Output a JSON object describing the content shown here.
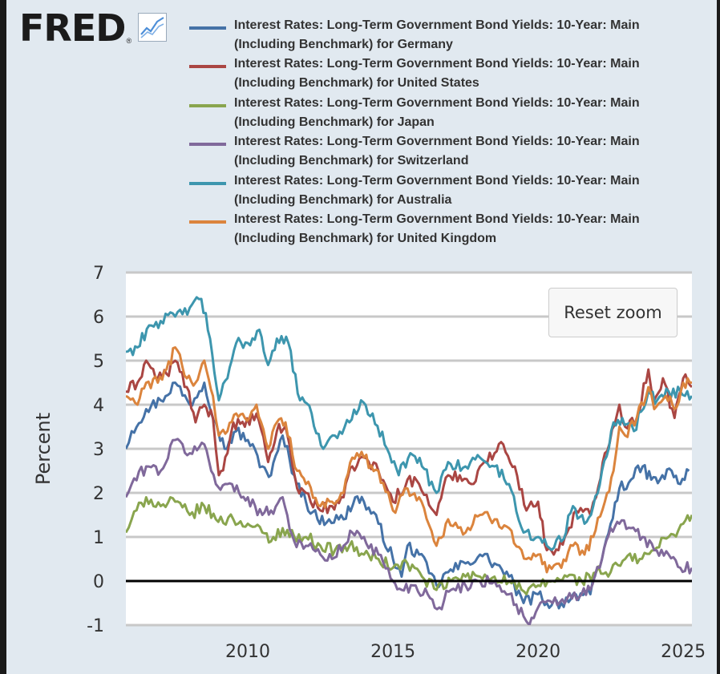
{
  "logo": {
    "text": "FRED",
    "reg": "®",
    "icon": "fred-chart-line-icon"
  },
  "reset_zoom_label": "Reset zoom",
  "colors": {
    "germany": "#4572a7",
    "united_states": "#aa4643",
    "japan": "#89a54e",
    "switzerland": "#80699b",
    "australia": "#3d96ae",
    "united_kingdom": "#db843d",
    "zero_line": "#000000",
    "grid": "#c8c8c8",
    "plot_bg": "#ffffff"
  },
  "chart_data": {
    "type": "line",
    "ylabel": "Percent",
    "ylim": [
      -1,
      7
    ],
    "xlim": [
      2005.8,
      2025.3
    ],
    "yticks": [
      -1,
      0,
      1,
      2,
      3,
      4,
      5,
      6,
      7
    ],
    "xticks": [
      2010,
      2015,
      2020,
      2025
    ],
    "grid": true,
    "legend_position": "top",
    "series": [
      {
        "name": "Interest Rates: Long-Term Government Bond Yields: 10-Year: Main (Including Benchmark) for Germany",
        "color": "#4572a7",
        "points": [
          [
            2005.8,
            3.0
          ],
          [
            2006.0,
            3.4
          ],
          [
            2006.5,
            3.9
          ],
          [
            2007.0,
            4.1
          ],
          [
            2007.5,
            4.5
          ],
          [
            2008.0,
            4.0
          ],
          [
            2008.5,
            4.5
          ],
          [
            2008.9,
            3.6
          ],
          [
            2009.2,
            3.0
          ],
          [
            2009.6,
            3.4
          ],
          [
            2010.0,
            3.2
          ],
          [
            2010.5,
            2.6
          ],
          [
            2010.8,
            2.4
          ],
          [
            2011.2,
            3.3
          ],
          [
            2011.6,
            2.4
          ],
          [
            2012.0,
            1.8
          ],
          [
            2012.4,
            1.4
          ],
          [
            2012.8,
            1.4
          ],
          [
            2013.3,
            1.4
          ],
          [
            2013.7,
            1.9
          ],
          [
            2014.0,
            1.8
          ],
          [
            2014.5,
            1.3
          ],
          [
            2015.0,
            0.5
          ],
          [
            2015.3,
            0.1
          ],
          [
            2015.5,
            0.8
          ],
          [
            2015.9,
            0.6
          ],
          [
            2016.5,
            -0.1
          ],
          [
            2016.9,
            0.2
          ],
          [
            2017.5,
            0.4
          ],
          [
            2018.0,
            0.6
          ],
          [
            2018.5,
            0.4
          ],
          [
            2019.0,
            0.1
          ],
          [
            2019.5,
            -0.5
          ],
          [
            2020.0,
            -0.3
          ],
          [
            2020.3,
            -0.5
          ],
          [
            2020.8,
            -0.5
          ],
          [
            2021.3,
            -0.3
          ],
          [
            2021.8,
            -0.3
          ],
          [
            2022.2,
            0.5
          ],
          [
            2022.5,
            1.3
          ],
          [
            2022.8,
            2.1
          ],
          [
            2023.2,
            2.3
          ],
          [
            2023.6,
            2.6
          ],
          [
            2023.9,
            2.3
          ],
          [
            2024.2,
            2.3
          ],
          [
            2024.6,
            2.5
          ],
          [
            2024.9,
            2.2
          ],
          [
            2025.2,
            2.5
          ]
        ]
      },
      {
        "name": "Interest Rates: Long-Term Government Bond Yields: 10-Year: Main (Including Benchmark) for United States",
        "color": "#aa4643",
        "points": [
          [
            2005.8,
            4.3
          ],
          [
            2006.2,
            4.5
          ],
          [
            2006.5,
            5.0
          ],
          [
            2006.9,
            4.6
          ],
          [
            2007.2,
            4.7
          ],
          [
            2007.5,
            5.0
          ],
          [
            2007.9,
            4.4
          ],
          [
            2008.2,
            3.6
          ],
          [
            2008.5,
            4.0
          ],
          [
            2008.8,
            3.7
          ],
          [
            2009.0,
            2.4
          ],
          [
            2009.3,
            2.9
          ],
          [
            2009.5,
            3.6
          ],
          [
            2009.9,
            3.5
          ],
          [
            2010.3,
            3.8
          ],
          [
            2010.7,
            2.7
          ],
          [
            2011.0,
            3.4
          ],
          [
            2011.3,
            3.5
          ],
          [
            2011.7,
            2.1
          ],
          [
            2012.0,
            2.0
          ],
          [
            2012.5,
            1.6
          ],
          [
            2012.9,
            1.7
          ],
          [
            2013.3,
            1.9
          ],
          [
            2013.6,
            2.6
          ],
          [
            2014.0,
            2.8
          ],
          [
            2014.5,
            2.5
          ],
          [
            2015.0,
            1.8
          ],
          [
            2015.5,
            2.3
          ],
          [
            2015.9,
            2.2
          ],
          [
            2016.5,
            1.5
          ],
          [
            2016.9,
            2.4
          ],
          [
            2017.3,
            2.4
          ],
          [
            2017.7,
            2.2
          ],
          [
            2018.0,
            2.6
          ],
          [
            2018.5,
            2.9
          ],
          [
            2018.8,
            3.1
          ],
          [
            2019.2,
            2.6
          ],
          [
            2019.6,
            1.6
          ],
          [
            2020.0,
            1.8
          ],
          [
            2020.3,
            0.7
          ],
          [
            2020.7,
            0.7
          ],
          [
            2021.0,
            1.1
          ],
          [
            2021.3,
            1.6
          ],
          [
            2021.8,
            1.5
          ],
          [
            2022.0,
            1.9
          ],
          [
            2022.3,
            2.9
          ],
          [
            2022.8,
            4.0
          ],
          [
            2023.0,
            3.5
          ],
          [
            2023.4,
            3.7
          ],
          [
            2023.8,
            4.8
          ],
          [
            2024.0,
            4.1
          ],
          [
            2024.3,
            4.6
          ],
          [
            2024.7,
            3.7
          ],
          [
            2025.0,
            4.6
          ],
          [
            2025.3,
            4.4
          ]
        ]
      },
      {
        "name": "Interest Rates: Long-Term Government Bond Yields: 10-Year: Main (Including Benchmark) for Japan",
        "color": "#89a54e",
        "points": [
          [
            2005.8,
            1.1
          ],
          [
            2006.0,
            1.4
          ],
          [
            2006.5,
            1.9
          ],
          [
            2007.0,
            1.7
          ],
          [
            2007.5,
            1.8
          ],
          [
            2008.0,
            1.5
          ],
          [
            2008.5,
            1.7
          ],
          [
            2008.9,
            1.4
          ],
          [
            2009.5,
            1.4
          ],
          [
            2010.0,
            1.3
          ],
          [
            2010.5,
            1.1
          ],
          [
            2010.8,
            0.9
          ],
          [
            2011.2,
            1.2
          ],
          [
            2011.6,
            1.0
          ],
          [
            2012.0,
            1.0
          ],
          [
            2012.5,
            0.8
          ],
          [
            2013.0,
            0.7
          ],
          [
            2013.5,
            0.8
          ],
          [
            2014.0,
            0.6
          ],
          [
            2014.5,
            0.5
          ],
          [
            2015.0,
            0.3
          ],
          [
            2015.5,
            0.4
          ],
          [
            2016.0,
            0.1
          ],
          [
            2016.5,
            -0.2
          ],
          [
            2017.0,
            0.0
          ],
          [
            2017.5,
            0.1
          ],
          [
            2018.0,
            0.1
          ],
          [
            2018.5,
            0.1
          ],
          [
            2019.0,
            0.0
          ],
          [
            2019.6,
            -0.3
          ],
          [
            2020.0,
            -0.1
          ],
          [
            2020.5,
            0.0
          ],
          [
            2021.0,
            0.1
          ],
          [
            2021.5,
            0.0
          ],
          [
            2022.0,
            0.2
          ],
          [
            2022.5,
            0.2
          ],
          [
            2023.0,
            0.5
          ],
          [
            2023.5,
            0.5
          ],
          [
            2024.0,
            0.7
          ],
          [
            2024.5,
            1.0
          ],
          [
            2025.0,
            1.3
          ],
          [
            2025.3,
            1.5
          ]
        ]
      },
      {
        "name": "Interest Rates: Long-Term Government Bond Yields: 10-Year: Main (Including Benchmark) for Switzerland",
        "color": "#80699b",
        "points": [
          [
            2005.8,
            1.9
          ],
          [
            2006.0,
            2.2
          ],
          [
            2006.5,
            2.6
          ],
          [
            2007.0,
            2.5
          ],
          [
            2007.5,
            3.2
          ],
          [
            2008.0,
            2.9
          ],
          [
            2008.5,
            3.1
          ],
          [
            2008.9,
            2.2
          ],
          [
            2009.3,
            2.2
          ],
          [
            2009.7,
            2.0
          ],
          [
            2010.0,
            1.9
          ],
          [
            2010.5,
            1.5
          ],
          [
            2010.8,
            1.6
          ],
          [
            2011.2,
            1.9
          ],
          [
            2011.6,
            0.9
          ],
          [
            2012.0,
            0.8
          ],
          [
            2012.5,
            0.6
          ],
          [
            2012.9,
            0.5
          ],
          [
            2013.3,
            0.8
          ],
          [
            2013.6,
            1.1
          ],
          [
            2014.0,
            1.0
          ],
          [
            2014.5,
            0.6
          ],
          [
            2015.0,
            0.0
          ],
          [
            2015.3,
            -0.2
          ],
          [
            2015.7,
            -0.1
          ],
          [
            2016.2,
            -0.3
          ],
          [
            2016.6,
            -0.6
          ],
          [
            2017.0,
            -0.2
          ],
          [
            2017.5,
            -0.1
          ],
          [
            2018.0,
            0.0
          ],
          [
            2018.5,
            0.0
          ],
          [
            2019.0,
            -0.3
          ],
          [
            2019.5,
            -0.8
          ],
          [
            2019.7,
            -1.0
          ],
          [
            2020.0,
            -0.6
          ],
          [
            2020.5,
            -0.5
          ],
          [
            2021.0,
            -0.4
          ],
          [
            2021.5,
            -0.3
          ],
          [
            2021.8,
            -0.2
          ],
          [
            2022.2,
            0.5
          ],
          [
            2022.5,
            1.2
          ],
          [
            2022.8,
            1.3
          ],
          [
            2023.2,
            1.2
          ],
          [
            2023.6,
            1.0
          ],
          [
            2024.0,
            0.7
          ],
          [
            2024.5,
            0.6
          ],
          [
            2024.9,
            0.3
          ],
          [
            2025.3,
            0.3
          ]
        ]
      },
      {
        "name": "Interest Rates: Long-Term Government Bond Yields: 10-Year: Main (Including Benchmark) for Australia",
        "color": "#3d96ae",
        "points": [
          [
            2005.8,
            5.2
          ],
          [
            2006.2,
            5.3
          ],
          [
            2006.6,
            5.8
          ],
          [
            2007.0,
            5.9
          ],
          [
            2007.5,
            6.0
          ],
          [
            2008.0,
            6.2
          ],
          [
            2008.4,
            6.4
          ],
          [
            2008.7,
            5.5
          ],
          [
            2009.0,
            4.1
          ],
          [
            2009.3,
            4.6
          ],
          [
            2009.6,
            5.4
          ],
          [
            2010.0,
            5.4
          ],
          [
            2010.4,
            5.7
          ],
          [
            2010.7,
            4.9
          ],
          [
            2011.0,
            5.5
          ],
          [
            2011.4,
            5.4
          ],
          [
            2011.8,
            4.1
          ],
          [
            2012.2,
            3.8
          ],
          [
            2012.6,
            3.0
          ],
          [
            2013.0,
            3.3
          ],
          [
            2013.5,
            3.6
          ],
          [
            2013.9,
            4.1
          ],
          [
            2014.3,
            3.8
          ],
          [
            2014.8,
            3.0
          ],
          [
            2015.2,
            2.4
          ],
          [
            2015.6,
            2.9
          ],
          [
            2016.0,
            2.6
          ],
          [
            2016.5,
            2.0
          ],
          [
            2016.9,
            2.7
          ],
          [
            2017.5,
            2.6
          ],
          [
            2018.0,
            2.8
          ],
          [
            2018.5,
            2.6
          ],
          [
            2019.0,
            2.2
          ],
          [
            2019.5,
            1.1
          ],
          [
            2020.0,
            1.0
          ],
          [
            2020.3,
            0.8
          ],
          [
            2020.8,
            0.9
          ],
          [
            2021.2,
            1.7
          ],
          [
            2021.6,
            1.3
          ],
          [
            2021.9,
            1.7
          ],
          [
            2022.2,
            2.5
          ],
          [
            2022.6,
            3.6
          ],
          [
            2022.9,
            3.7
          ],
          [
            2023.3,
            3.4
          ],
          [
            2023.8,
            4.3
          ],
          [
            2024.1,
            4.1
          ],
          [
            2024.5,
            4.3
          ],
          [
            2024.9,
            4.3
          ],
          [
            2025.3,
            4.2
          ]
        ]
      },
      {
        "name": "Interest Rates: Long-Term Government Bond Yields: 10-Year: Main (Including Benchmark) for United Kingdom",
        "color": "#db843d",
        "points": [
          [
            2005.8,
            4.2
          ],
          [
            2006.2,
            4.0
          ],
          [
            2006.5,
            4.5
          ],
          [
            2006.9,
            4.5
          ],
          [
            2007.2,
            4.8
          ],
          [
            2007.5,
            5.3
          ],
          [
            2007.9,
            4.6
          ],
          [
            2008.2,
            4.5
          ],
          [
            2008.5,
            5.0
          ],
          [
            2008.8,
            4.2
          ],
          [
            2009.0,
            3.3
          ],
          [
            2009.3,
            3.4
          ],
          [
            2009.6,
            3.8
          ],
          [
            2009.9,
            3.7
          ],
          [
            2010.3,
            4.0
          ],
          [
            2010.7,
            3.0
          ],
          [
            2011.0,
            3.6
          ],
          [
            2011.3,
            3.6
          ],
          [
            2011.7,
            2.5
          ],
          [
            2012.0,
            2.2
          ],
          [
            2012.5,
            1.7
          ],
          [
            2012.9,
            1.8
          ],
          [
            2013.3,
            2.0
          ],
          [
            2013.6,
            2.8
          ],
          [
            2014.0,
            2.8
          ],
          [
            2014.5,
            2.5
          ],
          [
            2015.0,
            1.6
          ],
          [
            2015.5,
            2.1
          ],
          [
            2015.9,
            1.9
          ],
          [
            2016.5,
            0.8
          ],
          [
            2016.9,
            1.4
          ],
          [
            2017.5,
            1.1
          ],
          [
            2018.0,
            1.5
          ],
          [
            2018.5,
            1.4
          ],
          [
            2019.0,
            1.2
          ],
          [
            2019.6,
            0.5
          ],
          [
            2020.0,
            0.6
          ],
          [
            2020.3,
            0.2
          ],
          [
            2020.8,
            0.3
          ],
          [
            2021.2,
            0.8
          ],
          [
            2021.6,
            0.6
          ],
          [
            2021.9,
            1.0
          ],
          [
            2022.3,
            1.8
          ],
          [
            2022.6,
            2.5
          ],
          [
            2022.8,
            3.5
          ],
          [
            2023.0,
            3.3
          ],
          [
            2023.4,
            3.7
          ],
          [
            2023.8,
            4.4
          ],
          [
            2024.0,
            3.9
          ],
          [
            2024.4,
            4.2
          ],
          [
            2024.7,
            3.9
          ],
          [
            2025.0,
            4.5
          ],
          [
            2025.3,
            4.5
          ]
        ]
      }
    ]
  }
}
